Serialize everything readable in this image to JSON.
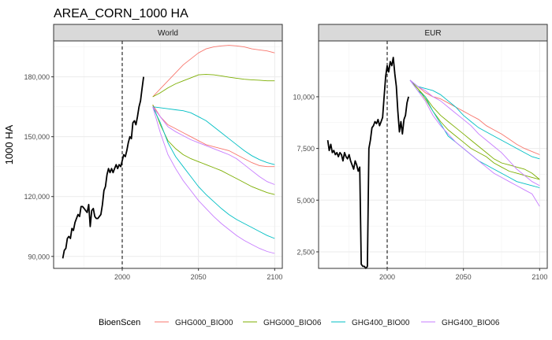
{
  "chart_data": {
    "type": "line",
    "title": "AREA_CORN_1000 HA",
    "ylabel": "1000 HA",
    "xlabel": "",
    "legend": {
      "title": "BioenScen",
      "position": "bottom",
      "entries": [
        {
          "name": "GHG000_BIO00",
          "color": "#F8766D"
        },
        {
          "name": "GHG000_BIO06",
          "color": "#7CAE00"
        },
        {
          "name": "GHG400_BIO00",
          "color": "#00BFC4"
        },
        {
          "name": "GHG400_BIO06",
          "color": "#C77CFF"
        }
      ]
    },
    "colors": {
      "GHG000_BIO00": "#F8766D",
      "GHG000_BIO06": "#7CAE00",
      "GHG400_BIO00": "#00BFC4",
      "GHG400_BIO06": "#C77CFF",
      "history": "#000000",
      "vline": "#000000"
    },
    "vline_x": 2000,
    "panels": [
      {
        "name": "World",
        "xlim": [
          1955,
          2105
        ],
        "ylim": [
          84000,
          198000
        ],
        "xticks": [
          2000,
          2050,
          2100
        ],
        "xtick_labels": [
          "2000",
          "2050",
          "2100"
        ],
        "yticks": [
          90000,
          120000,
          150000,
          180000
        ],
        "ytick_labels": [
          "90,000",
          "120,000",
          "150,000",
          "180,000"
        ],
        "history": {
          "x": [
            1961,
            1962,
            1963,
            1964,
            1965,
            1966,
            1967,
            1968,
            1969,
            1970,
            1971,
            1972,
            1973,
            1974,
            1975,
            1976,
            1977,
            1978,
            1979,
            1980,
            1981,
            1982,
            1983,
            1984,
            1985,
            1986,
            1987,
            1988,
            1989,
            1990,
            1991,
            1992,
            1993,
            1994,
            1995,
            1996,
            1997,
            1998,
            1999,
            2000,
            2001,
            2002,
            2003,
            2004,
            2005,
            2006,
            2007,
            2008,
            2009,
            2010,
            2011,
            2012,
            2013,
            2014
          ],
          "y": [
            89000,
            93000,
            94000,
            99000,
            100000,
            99000,
            104000,
            103000,
            107000,
            109000,
            111000,
            110000,
            115000,
            115000,
            114000,
            113000,
            112000,
            116000,
            105000,
            113000,
            114000,
            110000,
            109000,
            109000,
            110000,
            111000,
            116000,
            123000,
            125000,
            131000,
            134000,
            132000,
            134000,
            132000,
            134000,
            136000,
            134000,
            136000,
            135000,
            138000,
            141000,
            140000,
            143000,
            147000,
            150000,
            149000,
            157000,
            158000,
            156000,
            160000,
            165000,
            168000,
            174000,
            180000
          ]
        },
        "series": [
          {
            "name": "GHG000_BIO00",
            "x": [
              2020,
              2025,
              2030,
              2035,
              2040,
              2045,
              2050,
              2055,
              2060,
              2065,
              2070,
              2075,
              2080,
              2085,
              2090,
              2095,
              2100
            ],
            "y": [
              170000,
              174000,
              178000,
              182000,
              186000,
              189000,
              192000,
              194000,
              195000,
              195500,
              195800,
              195500,
              195000,
              194000,
              193500,
              193000,
              192000
            ]
          },
          {
            "name": "GHG000_BIO06",
            "x": [
              2020,
              2025,
              2030,
              2035,
              2040,
              2045,
              2050,
              2055,
              2060,
              2065,
              2070,
              2075,
              2080,
              2085,
              2090,
              2095,
              2100
            ],
            "y": [
              170000,
              172000,
              174500,
              176500,
              178000,
              179500,
              181000,
              181200,
              181000,
              180500,
              179800,
              179300,
              178800,
              178500,
              178300,
              178000,
              178000
            ]
          },
          {
            "name": "GHG000_BIO00",
            "x": [
              2020,
              2025,
              2030,
              2035,
              2040,
              2045,
              2050,
              2055,
              2060,
              2065,
              2070,
              2075,
              2080,
              2085,
              2090,
              2095,
              2100
            ],
            "y": [
              166000,
              160000,
              156000,
              154000,
              152000,
              150000,
              148000,
              146000,
              145000,
              144000,
              143000,
              141000,
              139000,
              137000,
              135500,
              135000,
              135000
            ]
          },
          {
            "name": "GHG000_BIO06",
            "x": [
              2020,
              2025,
              2030,
              2035,
              2040,
              2045,
              2050,
              2055,
              2060,
              2065,
              2070,
              2075,
              2080,
              2085,
              2090,
              2095,
              2100
            ],
            "y": [
              166000,
              156000,
              148000,
              144000,
              141000,
              139000,
              137500,
              136000,
              134500,
              133000,
              131000,
              129000,
              127000,
              125000,
              123500,
              122000,
              121000
            ]
          },
          {
            "name": "GHG400_BIO00",
            "x": [
              2020,
              2025,
              2030,
              2035,
              2040,
              2045,
              2050,
              2055,
              2060,
              2065,
              2070,
              2075,
              2080,
              2085,
              2090,
              2095,
              2100
            ],
            "y": [
              165000,
              164500,
              164000,
              163500,
              163000,
              162000,
              160000,
              158000,
              155000,
              152000,
              149000,
              146000,
              143000,
              140500,
              138500,
              137000,
              136000
            ]
          },
          {
            "name": "GHG400_BIO00",
            "x": [
              2020,
              2025,
              2030,
              2035,
              2040,
              2045,
              2050,
              2055,
              2060,
              2065,
              2070,
              2075,
              2080,
              2085,
              2090,
              2095,
              2100
            ],
            "y": [
              165000,
              157000,
              147000,
              140000,
              135000,
              130000,
              125000,
              121000,
              117500,
              114000,
              111000,
              108500,
              106500,
              104500,
              102500,
              100500,
              99000
            ]
          },
          {
            "name": "GHG400_BIO06",
            "x": [
              2020,
              2025,
              2030,
              2035,
              2040,
              2045,
              2050,
              2055,
              2060,
              2065,
              2070,
              2075,
              2080,
              2085,
              2090,
              2095,
              2100
            ],
            "y": [
              165000,
              160000,
              155000,
              152500,
              150500,
              148500,
              147000,
              145500,
              144000,
              142500,
              141000,
              139000,
              136000,
              133000,
              130000,
              127500,
              126000
            ]
          },
          {
            "name": "GHG400_BIO06",
            "x": [
              2020,
              2025,
              2030,
              2035,
              2040,
              2045,
              2050,
              2055,
              2060,
              2065,
              2070,
              2075,
              2080,
              2085,
              2090,
              2095,
              2100
            ],
            "y": [
              165000,
              152000,
              141000,
              134000,
              128000,
              123000,
              118000,
              114000,
              110000,
              106500,
              103500,
              100500,
              98000,
              96000,
              94000,
              92500,
              91500
            ]
          }
        ]
      },
      {
        "name": "EUR",
        "xlim": [
          1955,
          2105
        ],
        "ylim": [
          1700,
          12700
        ],
        "xticks": [
          2000,
          2050,
          2100
        ],
        "xtick_labels": [
          "2000",
          "2050",
          "2100"
        ],
        "yticks": [
          2500,
          5000,
          7500,
          10000
        ],
        "ytick_labels": [
          "2,500",
          "5,000",
          "7,500",
          "10,000"
        ],
        "history": {
          "x": [
            1961,
            1962,
            1963,
            1964,
            1965,
            1966,
            1967,
            1968,
            1969,
            1970,
            1971,
            1972,
            1973,
            1974,
            1975,
            1976,
            1977,
            1978,
            1979,
            1980,
            1981,
            1982,
            1983,
            1984,
            1985,
            1986,
            1987,
            1988,
            1989,
            1990,
            1991,
            1992,
            1993,
            1994,
            1995,
            1996,
            1997,
            1998,
            1999,
            2000,
            2001,
            2002,
            2003,
            2004,
            2005,
            2006,
            2007,
            2008,
            2009,
            2010,
            2011,
            2012,
            2013,
            2014
          ],
          "y": [
            7900,
            7400,
            7700,
            7300,
            7400,
            7200,
            7300,
            7100,
            7300,
            7200,
            6900,
            7300,
            7100,
            7000,
            7200,
            6900,
            6700,
            6500,
            6900,
            6700,
            6400,
            6600,
            1900,
            1800,
            1800,
            1700,
            1800,
            7500,
            7900,
            8500,
            8600,
            8800,
            8700,
            8900,
            8600,
            8800,
            9000,
            10000,
            11000,
            11500,
            11200,
            11700,
            11500,
            11900,
            11100,
            10500,
            9300,
            8300,
            8800,
            8200,
            8900,
            9100,
            9700,
            10000
          ]
        },
        "series": [
          {
            "name": "GHG000_BIO00",
            "x": [
              2015,
              2020,
              2025,
              2030,
              2035,
              2040,
              2045,
              2050,
              2055,
              2060,
              2065,
              2070,
              2075,
              2080,
              2085,
              2090,
              2095,
              2100
            ],
            "y": [
              10800,
              10500,
              10200,
              10000,
              9900,
              9700,
              9500,
              9300,
              9100,
              8900,
              8600,
              8400,
              8200,
              7950,
              7700,
              7500,
              7350,
              7200
            ]
          },
          {
            "name": "GHG000_BIO06",
            "x": [
              2015,
              2020,
              2025,
              2030,
              2035,
              2040,
              2045,
              2050,
              2055,
              2060,
              2065,
              2070,
              2075,
              2080,
              2085,
              2090,
              2095,
              2100
            ],
            "y": [
              10800,
              10400,
              9900,
              9300,
              8800,
              8400,
              8100,
              7800,
              7500,
              7300,
              7100,
              6800,
              6600,
              6400,
              6300,
              6200,
              6100,
              6000
            ]
          },
          {
            "name": "GHG400_BIO00",
            "x": [
              2015,
              2020,
              2025,
              2030,
              2035,
              2040,
              2045,
              2050,
              2055,
              2060,
              2065,
              2070,
              2075,
              2080,
              2085,
              2090,
              2095,
              2100
            ],
            "y": [
              10800,
              10500,
              10400,
              10300,
              10100,
              9800,
              9500,
              9100,
              8800,
              8500,
              8300,
              8100,
              7900,
              7700,
              7500,
              7300,
              7100,
              7000
            ]
          },
          {
            "name": "GHG000_BIO06",
            "x": [
              2015,
              2020,
              2025,
              2030,
              2035,
              2040,
              2045,
              2050,
              2055,
              2060,
              2065,
              2070,
              2075,
              2080,
              2085,
              2090,
              2095,
              2100
            ],
            "y": [
              10800,
              10400,
              10000,
              9500,
              9100,
              8800,
              8500,
              8200,
              7900,
              7600,
              7300,
              7000,
              6800,
              6700,
              6600,
              6500,
              6300,
              6000
            ]
          },
          {
            "name": "GHG400_BIO00",
            "x": [
              2015,
              2020,
              2025,
              2030,
              2035,
              2040,
              2045,
              2050,
              2055,
              2060,
              2065,
              2070,
              2075,
              2080,
              2085,
              2090,
              2095,
              2100
            ],
            "y": [
              10800,
              10300,
              10000,
              9300,
              8700,
              8100,
              7800,
              7500,
              7200,
              6900,
              6700,
              6500,
              6300,
              6100,
              5900,
              5800,
              5700,
              5600
            ]
          },
          {
            "name": "GHG400_BIO06",
            "x": [
              2015,
              2020,
              2025,
              2030,
              2035,
              2040,
              2045,
              2050,
              2055,
              2060,
              2065,
              2070,
              2075,
              2080,
              2085,
              2090,
              2095,
              2100
            ],
            "y": [
              10800,
              10500,
              10300,
              10000,
              9800,
              9500,
              9200,
              8900,
              8600,
              8200,
              7900,
              7600,
              7300,
              6900,
              6500,
              6200,
              5900,
              5700
            ]
          },
          {
            "name": "GHG400_BIO06",
            "x": [
              2015,
              2020,
              2025,
              2030,
              2035,
              2040,
              2045,
              2050,
              2055,
              2060,
              2065,
              2070,
              2075,
              2080,
              2085,
              2090,
              2095,
              2100
            ],
            "y": [
              10800,
              10300,
              9800,
              9100,
              8600,
              8200,
              7800,
              7500,
              7200,
              6900,
              6600,
              6300,
              6100,
              5900,
              5700,
              5500,
              5300,
              4700
            ]
          }
        ]
      }
    ]
  }
}
